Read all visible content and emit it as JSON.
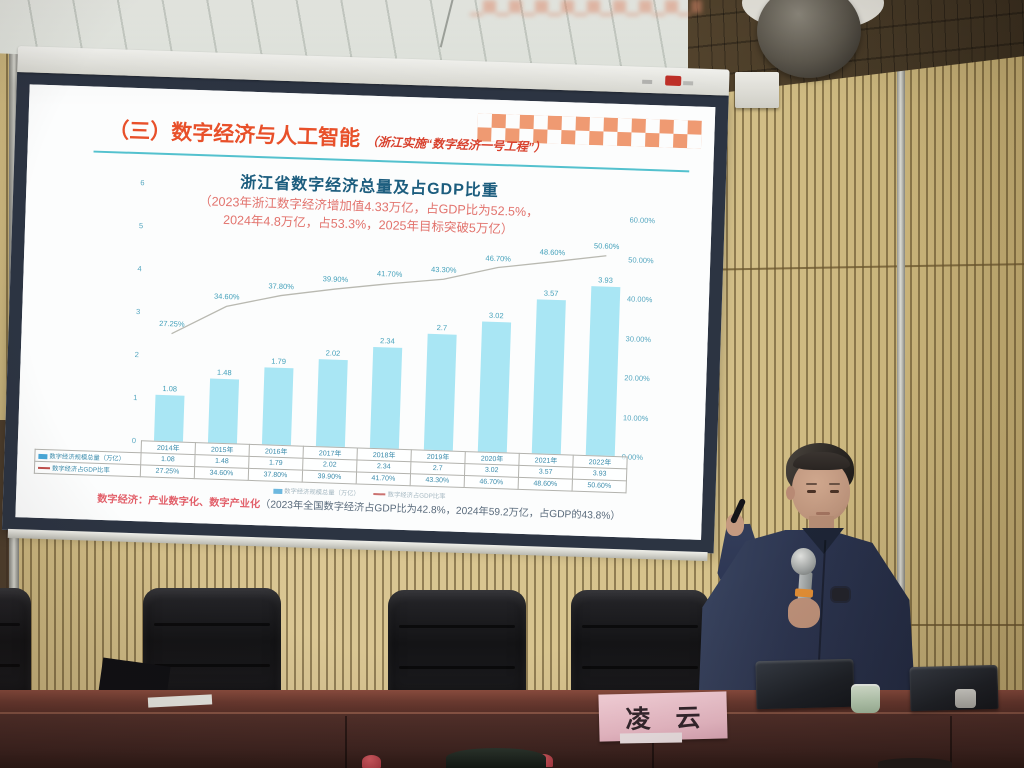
{
  "colors": {
    "accent_red": "#e8502a",
    "title_blue": "#1c5d7e",
    "subtitle_red": "#e2736d",
    "bar_fill": "#a9e6f4",
    "footnote_red": "#e2606a",
    "footnote_gray": "#5a6b7c",
    "card_pink": "#f2c6d0"
  },
  "scene": {
    "name_card": "凌　云"
  },
  "slide": {
    "header": {
      "title": "（三）数字经济与人工智能",
      "annotation": "（浙江实施“数字经济一号工程”）"
    },
    "footnote": {
      "lead": "数字经济：产业数字化、数字产业化",
      "detail": "（2023年全国数字经济占GDP比为42.8%，2024年59.2万亿，占GDP的43.8%）"
    }
  },
  "chart_data": {
    "type": "bar",
    "title": "浙江省数字经济总量及占GDP比重",
    "subtitle_line1": "（2023年浙江数字经济增加值4.33万亿，占GDP比为52.5%，",
    "subtitle_line2": "2024年4.8万亿，占53.3%，2025年目标突破5万亿）",
    "categories": [
      "2014年",
      "2015年",
      "2016年",
      "2017年",
      "2018年",
      "2019年",
      "2020年",
      "2021年",
      "2022年"
    ],
    "series": [
      {
        "name": "数字经济规模总量（万亿）",
        "type": "bar",
        "values": [
          1.08,
          1.48,
          1.79,
          2.02,
          2.34,
          2.7,
          3.02,
          3.57,
          3.93
        ],
        "labels": [
          "1.08",
          "1.48",
          "1.79",
          "2.02",
          "2.34",
          "2.7",
          "3.02",
          "3.57",
          "3.93"
        ],
        "color": "#a9e6f4"
      },
      {
        "name": "数字经济占GDP比率",
        "type": "line",
        "values": [
          27.25,
          34.6,
          37.8,
          39.9,
          41.7,
          43.3,
          46.7,
          48.6,
          50.6
        ],
        "labels": [
          "27.25%",
          "34.60%",
          "37.80%",
          "39.90%",
          "41.70%",
          "43.30%",
          "46.70%",
          "48.60%",
          "50.60%"
        ],
        "color": "#b9b9b1"
      }
    ],
    "left_axis": {
      "min": 0,
      "max": 6,
      "ticks": [
        "6",
        "5",
        "4",
        "3",
        "2",
        "1",
        "0"
      ]
    },
    "right_axis": {
      "min": 0,
      "max": 60,
      "ticks": [
        "60.00%",
        "50.00%",
        "40.00%",
        "30.00%",
        "20.00%",
        "10.00%",
        "0.00%"
      ]
    },
    "grid": false,
    "legend_position": "bottom"
  }
}
